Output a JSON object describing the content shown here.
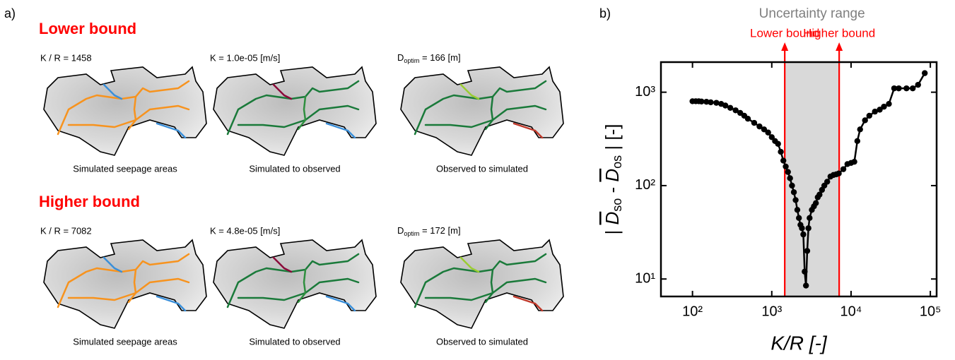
{
  "panel_a": {
    "label": "a)",
    "rows": [
      {
        "title": "Lower bound",
        "params": [
          {
            "text": "K / R = 1458"
          },
          {
            "text": "K = 1.0e-05 [m/s]"
          },
          {
            "pre": "D",
            "sub": "optim",
            "post": " = 166 [m]"
          }
        ],
        "captions": [
          "Simulated seepage areas",
          "Simulated to observed",
          "Observed to simulated"
        ]
      },
      {
        "title": "Higher bound",
        "params": [
          {
            "text": "K / R = 7082"
          },
          {
            "text": "K = 4.8e-05 [m/s]"
          },
          {
            "pre": "D",
            "sub": "optim",
            "post": " = 172 [m]"
          }
        ],
        "captions": [
          "Simulated seepage areas",
          "Simulated to observed",
          "Observed to simulated"
        ]
      }
    ]
  },
  "chart_data": {
    "type": "line",
    "label": "b)",
    "xlabel": "K/R [-]",
    "ylabel_parts": [
      "| ",
      "D",
      "so",
      " - ",
      "D",
      "os",
      " |  [-]"
    ],
    "xscale": "log",
    "yscale": "log",
    "xlim": [
      40,
      120000
    ],
    "ylim": [
      6.5,
      2100
    ],
    "xticks": [
      {
        "value": 100,
        "label": "10²"
      },
      {
        "value": 1000,
        "label": "10³"
      },
      {
        "value": 10000,
        "label": "10⁴"
      },
      {
        "value": 100000,
        "label": "10⁵"
      }
    ],
    "yticks": [
      {
        "value": 10,
        "label": "10¹"
      },
      {
        "value": 100,
        "label": "10²"
      },
      {
        "value": 1000,
        "label": "10³"
      }
    ],
    "shade_label": "Uncertainty range",
    "shade_color": "#d9d9d9",
    "vlines": [
      {
        "value": 1458,
        "label": "Lower bound"
      },
      {
        "value": 7082,
        "label": "Higher bound"
      }
    ],
    "vline_color": "#ff0000",
    "x": [
      100,
      110,
      120,
      130,
      150,
      170,
      200,
      230,
      260,
      300,
      350,
      400,
      450,
      500,
      600,
      700,
      800,
      900,
      1000,
      1100,
      1200,
      1300,
      1400,
      1500,
      1600,
      1700,
      1800,
      1900,
      2000,
      2100,
      2200,
      2300,
      2400,
      2500,
      2600,
      2700,
      2800,
      2900,
      3000,
      3200,
      3400,
      3600,
      3800,
      4000,
      4300,
      4600,
      5000,
      5500,
      6000,
      6500,
      7000,
      8000,
      9000,
      10000,
      11000,
      12000,
      13000,
      15000,
      17000,
      20000,
      23000,
      26000,
      30000,
      35000,
      40000,
      50000,
      60000,
      70000,
      85000
    ],
    "series": [
      {
        "color": "#000000",
        "values": [
          800,
          800,
          800,
          795,
          790,
          780,
          770,
          750,
          720,
          680,
          640,
          600,
          560,
          520,
          470,
          430,
          400,
          370,
          330,
          300,
          280,
          230,
          185,
          160,
          140,
          120,
          100,
          85,
          70,
          55,
          45,
          38,
          35,
          30,
          12,
          8.5,
          20,
          35,
          45,
          55,
          60,
          65,
          75,
          80,
          90,
          100,
          110,
          125,
          130,
          132,
          135,
          150,
          170,
          175,
          180,
          300,
          400,
          500,
          560,
          620,
          650,
          700,
          750,
          1100,
          1100,
          1100,
          1100,
          1200,
          1600
        ]
      }
    ]
  }
}
